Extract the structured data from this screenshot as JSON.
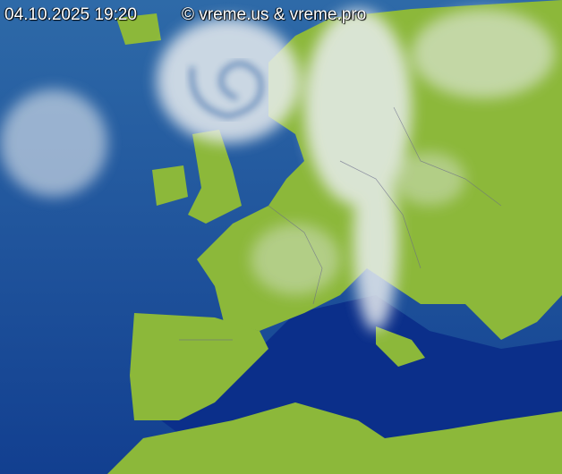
{
  "timestamp": "04.10.2025 19:20",
  "copyright": "© vreme.us & vreme.pro",
  "colors": {
    "sea": "#1a4f9a",
    "deep_sea": "#0b2f8a",
    "land": "#8cb83a",
    "cloud": "#e8ecef"
  }
}
